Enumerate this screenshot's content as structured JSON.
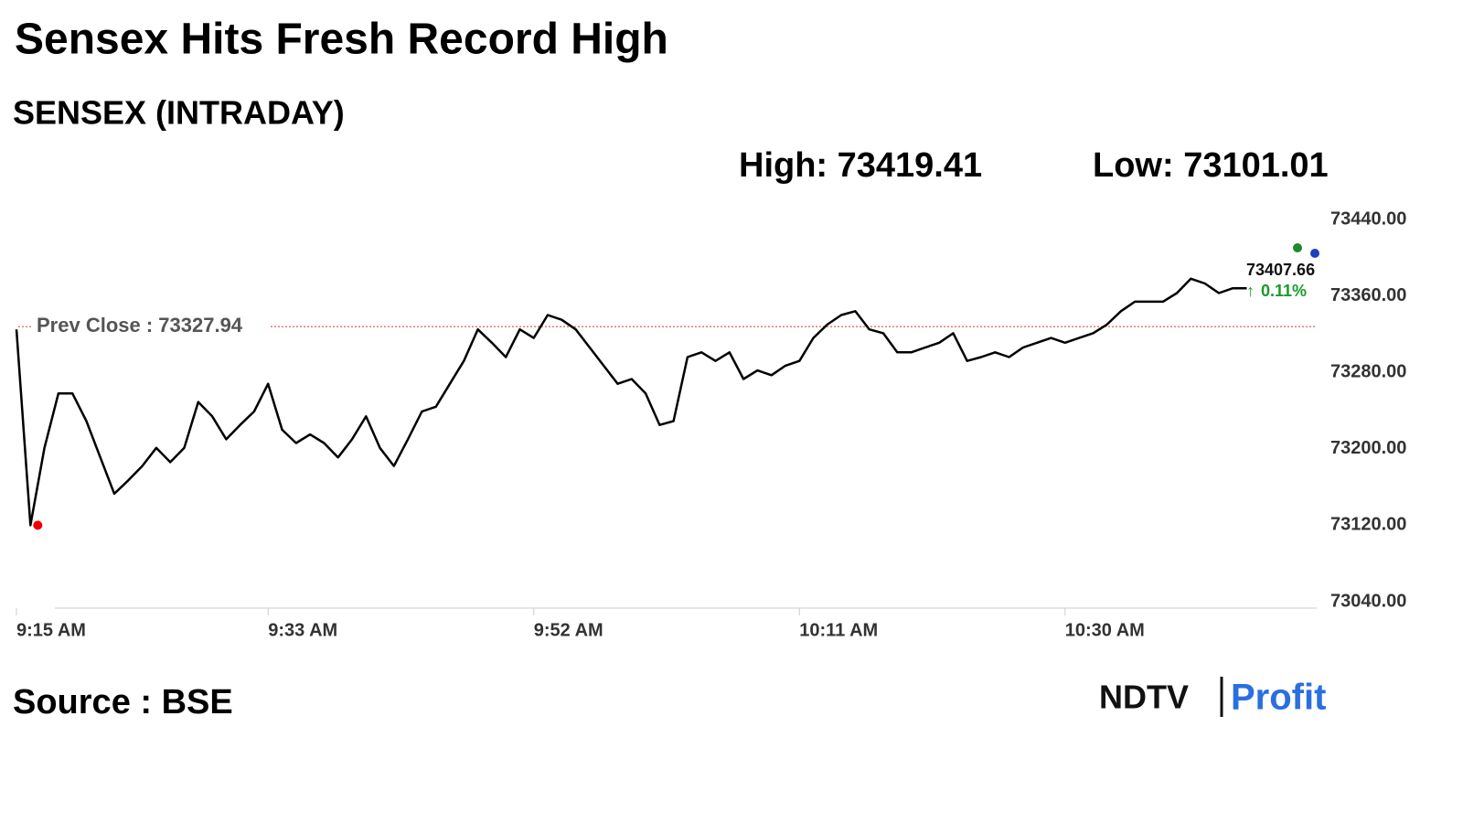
{
  "chart_data": {
    "type": "line",
    "title": "Sensex Hits Fresh Record High",
    "subtitle": "SENSEX (INTRADAY)",
    "high_label": "High: 73419.41",
    "low_label": "Low: 73101.01",
    "prev_close": 73327.94,
    "prev_close_label": "Prev Close : 73327.94",
    "last_value": 73407.66,
    "last_change": "0.11%",
    "source": "Source : BSE",
    "brand": [
      "NDTV",
      "Profit"
    ],
    "x": [
      555,
      556,
      557,
      558,
      559,
      560,
      561,
      562,
      563,
      564,
      565,
      566,
      567,
      568,
      569,
      570,
      571,
      572,
      573,
      574,
      575,
      576,
      577,
      578,
      579,
      580,
      581,
      582,
      583,
      584,
      585,
      586,
      587,
      588,
      589,
      590,
      591,
      592,
      593,
      594,
      595,
      596,
      597,
      598,
      599,
      600,
      601,
      602,
      603,
      604,
      605,
      606,
      607,
      608,
      609,
      610,
      611,
      612,
      613,
      614,
      615,
      616,
      617,
      618,
      619,
      620,
      621,
      622,
      623,
      624,
      625,
      626,
      627,
      628,
      629,
      630,
      631,
      632,
      633,
      634,
      635,
      636,
      637,
      638,
      639,
      640,
      641,
      642,
      643
    ],
    "xlim": [
      555,
      648
    ],
    "xticks": [
      {
        "value": 555,
        "label": "9:15 AM"
      },
      {
        "value": 573,
        "label": "9:33 AM"
      },
      {
        "value": 592,
        "label": "9:52 AM"
      },
      {
        "value": 611,
        "label": "10:11 AM"
      },
      {
        "value": 630,
        "label": "10:30 AM"
      }
    ],
    "ylim": [
      73040,
      73440
    ],
    "yticks": [
      {
        "value": 73040,
        "label": "73040.00"
      },
      {
        "value": 73120,
        "label": "73120.00"
      },
      {
        "value": 73200,
        "label": "73200.00"
      },
      {
        "value": 73280,
        "label": "73280.00"
      },
      {
        "value": 73360,
        "label": "73360.00"
      },
      {
        "value": 73440,
        "label": "73440.00"
      }
    ],
    "grid": false,
    "series": [
      {
        "color": "#000000",
        "values": [
          73325,
          73120,
          73201,
          73258,
          73258,
          73229,
          73191,
          73153,
          73167,
          73182,
          73201,
          73186,
          73201,
          73249,
          73234,
          73210,
          73225,
          73239,
          73268,
          73220,
          73206,
          73215,
          73206,
          73191,
          73210,
          73234,
          73201,
          73182,
          73210,
          73239,
          73244,
          73268,
          73292,
          73325,
          73311,
          73296,
          73325,
          73316,
          73340,
          73335,
          73325,
          73306,
          73287,
          73268,
          73273,
          73258,
          73225,
          73229,
          73296,
          73301,
          73292,
          73301,
          73273,
          73282,
          73277,
          73287,
          73292,
          73316,
          73330,
          73340,
          73344,
          73325,
          73321,
          73301,
          73301,
          73306,
          73311,
          73321,
          73292,
          73296,
          73301,
          73296,
          73306,
          73311,
          73316,
          73311,
          73316,
          73321,
          73330,
          73344,
          73354,
          73354,
          73354,
          73363,
          73378,
          73373,
          73363,
          73368,
          73368
        ]
      }
    ]
  }
}
